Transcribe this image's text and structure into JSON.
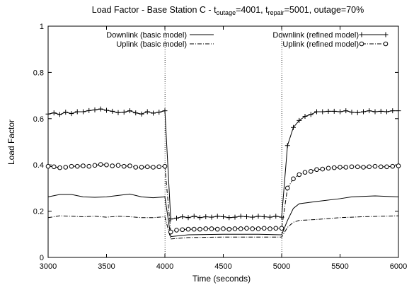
{
  "chart_data": {
    "type": "line",
    "title": {
      "prefix": "Load Factor - Base Station C - t",
      "sub1": "outage",
      "mid1": "=4001, t",
      "sub2": "repair",
      "suffix": "=5001, outage=70%"
    },
    "xlabel": "Time (seconds)",
    "ylabel": "Load Factor",
    "xlim": [
      3000,
      6000
    ],
    "ylim": [
      0,
      1
    ],
    "xticks": [
      "3000",
      "3500",
      "4000",
      "4500",
      "5000",
      "5500",
      "6000"
    ],
    "yticks": [
      "0",
      "0.2",
      "0.4",
      "0.6",
      "0.8",
      "1"
    ],
    "vlines": [
      4001,
      5001
    ],
    "grid": false,
    "legend": "top",
    "series": [
      {
        "name": "Downlink (basic model)",
        "style": "solid",
        "marker": "none",
        "legend_side": "left",
        "points": [
          [
            3000,
            0.262
          ],
          [
            3100,
            0.272
          ],
          [
            3200,
            0.272
          ],
          [
            3300,
            0.262
          ],
          [
            3400,
            0.26
          ],
          [
            3500,
            0.262
          ],
          [
            3600,
            0.268
          ],
          [
            3700,
            0.274
          ],
          [
            3800,
            0.262
          ],
          [
            3900,
            0.258
          ],
          [
            4000,
            0.262
          ],
          [
            4050,
            0.09
          ],
          [
            4200,
            0.098
          ],
          [
            4500,
            0.1
          ],
          [
            4800,
            0.1
          ],
          [
            5000,
            0.098
          ],
          [
            5050,
            0.16
          ],
          [
            5100,
            0.212
          ],
          [
            5150,
            0.232
          ],
          [
            5300,
            0.242
          ],
          [
            5500,
            0.254
          ],
          [
            5600,
            0.262
          ],
          [
            5800,
            0.266
          ],
          [
            6000,
            0.262
          ]
        ]
      },
      {
        "name": "Uplink (basic model)",
        "style": "dashdot",
        "marker": "none",
        "legend_side": "left",
        "points": [
          [
            3000,
            0.172
          ],
          [
            3100,
            0.18
          ],
          [
            3200,
            0.178
          ],
          [
            3300,
            0.176
          ],
          [
            3400,
            0.178
          ],
          [
            3500,
            0.174
          ],
          [
            3600,
            0.178
          ],
          [
            3700,
            0.176
          ],
          [
            3800,
            0.172
          ],
          [
            3900,
            0.172
          ],
          [
            4000,
            0.176
          ],
          [
            4050,
            0.08
          ],
          [
            4200,
            0.086
          ],
          [
            4500,
            0.088
          ],
          [
            4800,
            0.088
          ],
          [
            5000,
            0.088
          ],
          [
            5050,
            0.13
          ],
          [
            5100,
            0.152
          ],
          [
            5150,
            0.16
          ],
          [
            5300,
            0.164
          ],
          [
            5500,
            0.172
          ],
          [
            5700,
            0.176
          ],
          [
            6000,
            0.18
          ]
        ]
      },
      {
        "name": "Downlink (refined model)",
        "style": "solid",
        "marker": "plus",
        "legend_side": "right",
        "points": [
          [
            3000,
            0.62
          ],
          [
            3050,
            0.625
          ],
          [
            3100,
            0.618
          ],
          [
            3150,
            0.628
          ],
          [
            3200,
            0.622
          ],
          [
            3250,
            0.63
          ],
          [
            3300,
            0.63
          ],
          [
            3350,
            0.635
          ],
          [
            3400,
            0.638
          ],
          [
            3450,
            0.642
          ],
          [
            3500,
            0.636
          ],
          [
            3550,
            0.632
          ],
          [
            3600,
            0.626
          ],
          [
            3650,
            0.628
          ],
          [
            3700,
            0.634
          ],
          [
            3750,
            0.625
          ],
          [
            3800,
            0.62
          ],
          [
            3850,
            0.63
          ],
          [
            3900,
            0.624
          ],
          [
            3950,
            0.628
          ],
          [
            4000,
            0.634
          ],
          [
            4050,
            0.166
          ],
          [
            4100,
            0.17
          ],
          [
            4150,
            0.176
          ],
          [
            4200,
            0.172
          ],
          [
            4250,
            0.178
          ],
          [
            4300,
            0.172
          ],
          [
            4350,
            0.176
          ],
          [
            4400,
            0.174
          ],
          [
            4450,
            0.178
          ],
          [
            4500,
            0.176
          ],
          [
            4550,
            0.172
          ],
          [
            4600,
            0.174
          ],
          [
            4650,
            0.178
          ],
          [
            4700,
            0.176
          ],
          [
            4750,
            0.174
          ],
          [
            4800,
            0.178
          ],
          [
            4850,
            0.176
          ],
          [
            4900,
            0.174
          ],
          [
            4950,
            0.178
          ],
          [
            5000,
            0.174
          ],
          [
            5050,
            0.484
          ],
          [
            5100,
            0.562
          ],
          [
            5150,
            0.592
          ],
          [
            5200,
            0.61
          ],
          [
            5250,
            0.618
          ],
          [
            5300,
            0.63
          ],
          [
            5350,
            0.63
          ],
          [
            5400,
            0.632
          ],
          [
            5450,
            0.632
          ],
          [
            5500,
            0.63
          ],
          [
            5550,
            0.634
          ],
          [
            5600,
            0.628
          ],
          [
            5650,
            0.626
          ],
          [
            5700,
            0.63
          ],
          [
            5750,
            0.634
          ],
          [
            5800,
            0.63
          ],
          [
            5850,
            0.632
          ],
          [
            5900,
            0.63
          ],
          [
            5950,
            0.634
          ],
          [
            6000,
            0.634
          ]
        ]
      },
      {
        "name": "Uplink (refined model)",
        "style": "dashdot",
        "marker": "circle",
        "legend_side": "right",
        "points": [
          [
            3000,
            0.394
          ],
          [
            3050,
            0.392
          ],
          [
            3100,
            0.388
          ],
          [
            3150,
            0.39
          ],
          [
            3200,
            0.394
          ],
          [
            3250,
            0.394
          ],
          [
            3300,
            0.396
          ],
          [
            3350,
            0.394
          ],
          [
            3400,
            0.398
          ],
          [
            3450,
            0.402
          ],
          [
            3500,
            0.4
          ],
          [
            3550,
            0.396
          ],
          [
            3600,
            0.398
          ],
          [
            3650,
            0.394
          ],
          [
            3700,
            0.396
          ],
          [
            3750,
            0.39
          ],
          [
            3800,
            0.39
          ],
          [
            3850,
            0.392
          ],
          [
            3900,
            0.39
          ],
          [
            3950,
            0.392
          ],
          [
            4000,
            0.394
          ],
          [
            4050,
            0.11
          ],
          [
            4100,
            0.118
          ],
          [
            4150,
            0.12
          ],
          [
            4200,
            0.122
          ],
          [
            4250,
            0.122
          ],
          [
            4300,
            0.122
          ],
          [
            4350,
            0.124
          ],
          [
            4400,
            0.124
          ],
          [
            4450,
            0.122
          ],
          [
            4500,
            0.124
          ],
          [
            4550,
            0.122
          ],
          [
            4600,
            0.124
          ],
          [
            4650,
            0.124
          ],
          [
            4700,
            0.126
          ],
          [
            4750,
            0.124
          ],
          [
            4800,
            0.124
          ],
          [
            4850,
            0.126
          ],
          [
            4900,
            0.124
          ],
          [
            4950,
            0.126
          ],
          [
            5000,
            0.126
          ],
          [
            5050,
            0.3
          ],
          [
            5100,
            0.34
          ],
          [
            5150,
            0.358
          ],
          [
            5200,
            0.368
          ],
          [
            5250,
            0.372
          ],
          [
            5300,
            0.38
          ],
          [
            5350,
            0.382
          ],
          [
            5400,
            0.386
          ],
          [
            5450,
            0.388
          ],
          [
            5500,
            0.39
          ],
          [
            5550,
            0.39
          ],
          [
            5600,
            0.392
          ],
          [
            5650,
            0.392
          ],
          [
            5700,
            0.39
          ],
          [
            5750,
            0.392
          ],
          [
            5800,
            0.394
          ],
          [
            5850,
            0.392
          ],
          [
            5900,
            0.392
          ],
          [
            5950,
            0.394
          ],
          [
            6000,
            0.396
          ]
        ]
      }
    ]
  }
}
